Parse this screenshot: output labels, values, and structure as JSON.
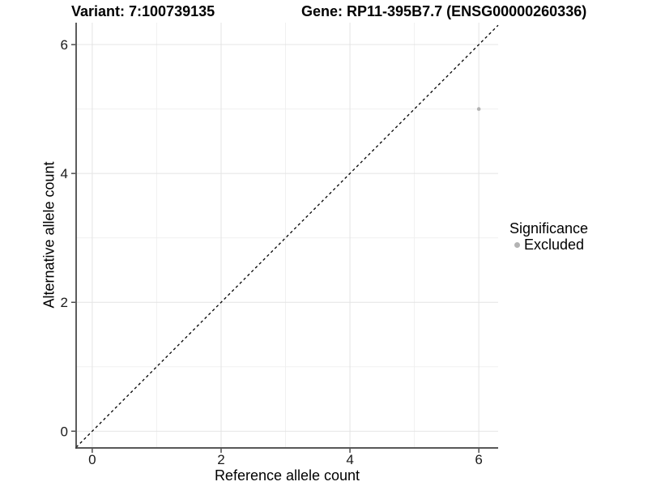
{
  "titles": {
    "variant": "Variant: 7:100739135",
    "gene": "Gene: RP11-395B7.7 (ENSG00000260336)"
  },
  "axes": {
    "x_label": "Reference allele count",
    "y_label": "Alternative allele count"
  },
  "legend": {
    "title": "Significance",
    "items": [
      {
        "label": "Excluded",
        "color": "#b3b3b3",
        "marker": "dot-icon"
      }
    ]
  },
  "chart_data": {
    "type": "scatter",
    "title_left": "Variant: 7:100739135",
    "title_right": "Gene: RP11-395B7.7 (ENSG00000260336)",
    "xlabel": "Reference allele count",
    "ylabel": "Alternative allele count",
    "xlim": [
      -0.25,
      6.3
    ],
    "ylim": [
      -0.26,
      6.34
    ],
    "x_ticks": [
      0,
      2,
      4,
      6
    ],
    "y_ticks": [
      0,
      2,
      4,
      6
    ],
    "x_minor_ticks": [
      1,
      3,
      5
    ],
    "y_minor_ticks": [
      1,
      3,
      5
    ],
    "grid": {
      "major_color": "#e4e4e4",
      "minor_color": "#f0f0f0"
    },
    "axis_color": "#404040",
    "tick_label_color": "#1a1a1a",
    "background": "#ffffff",
    "reference_line": {
      "type": "identity",
      "equation": "y = x",
      "style": "dashed",
      "color": "#000000"
    },
    "series": [
      {
        "name": "Excluded",
        "color": "#b3b3b3",
        "points": [
          [
            6,
            5
          ]
        ]
      }
    ],
    "legend_position": "right"
  }
}
